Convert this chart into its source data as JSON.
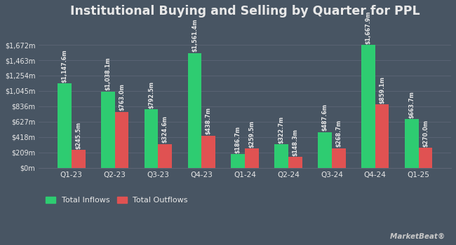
{
  "title": "Institutional Buying and Selling by Quarter for PPL",
  "quarters": [
    "Q1-23",
    "Q2-23",
    "Q3-23",
    "Q4-23",
    "Q1-24",
    "Q2-24",
    "Q3-24",
    "Q4-24",
    "Q1-25"
  ],
  "inflows": [
    1147.6,
    1038.1,
    792.5,
    1561.4,
    186.7,
    322.7,
    487.6,
    1667.9,
    663.7
  ],
  "outflows": [
    245.5,
    763.0,
    324.6,
    438.7,
    259.5,
    148.3,
    268.7,
    859.1,
    270.0
  ],
  "inflow_labels": [
    "$1,147.6m",
    "$1,038.1m",
    "$792.5m",
    "$1,561.4m",
    "$186.7m",
    "$322.7m",
    "$487.6m",
    "$1,667.9m",
    "$663.7m"
  ],
  "outflow_labels": [
    "$245.5m",
    "$763.0m",
    "$324.6m",
    "$438.7m",
    "$259.5m",
    "$148.3m",
    "$268.7m",
    "$859.1m",
    "$270.0m"
  ],
  "bar_width": 0.32,
  "inflow_color": "#2ecc71",
  "outflow_color": "#e05252",
  "bg_color": "#485563",
  "text_color": "#e8e8e8",
  "grid_color": "#5c6575",
  "yticks": [
    0,
    209,
    418,
    627,
    836,
    1045,
    1254,
    1463,
    1672
  ],
  "ytick_labels": [
    "$0m",
    "$209m",
    "$418m",
    "$627m",
    "$836m",
    "$1,045m",
    "$1,254m",
    "$1,463m",
    "$1,672m"
  ],
  "ylim": [
    0,
    1950
  ],
  "legend_inflow": "Total Inflows",
  "legend_outflow": "Total Outflows",
  "label_fontsize": 5.8,
  "title_fontsize": 12.5,
  "xtick_fontsize": 7.5,
  "ytick_fontsize": 7.0
}
